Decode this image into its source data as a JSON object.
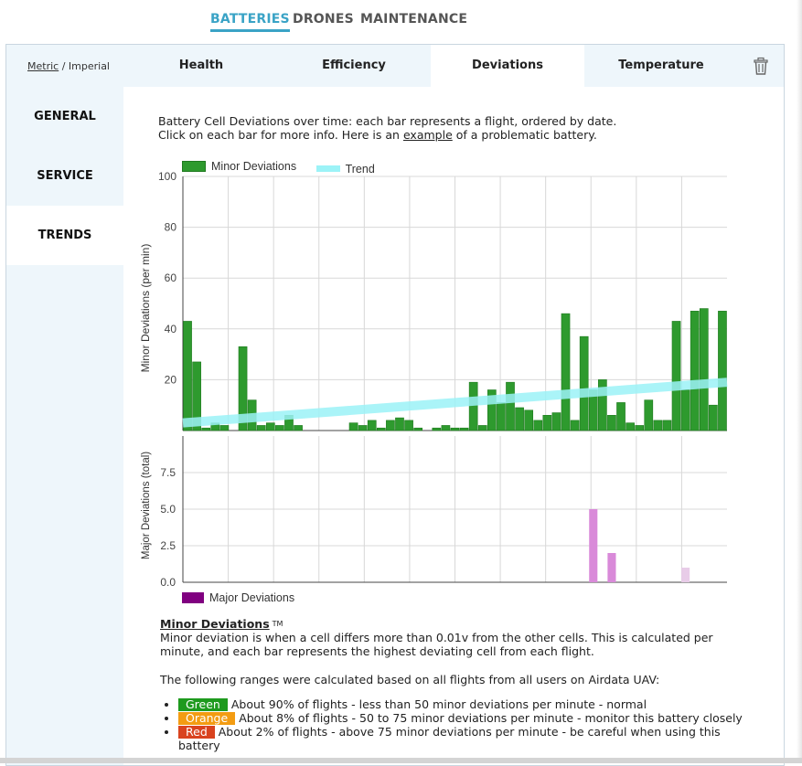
{
  "top_nav": {
    "tabs": [
      "BATTERIES",
      "DRONES",
      "MAINTENANCE"
    ],
    "active": "BATTERIES"
  },
  "units": {
    "metric": "Metric",
    "separator": " / ",
    "imperial": "Imperial"
  },
  "sub_tabs": {
    "labels": [
      "Health",
      "Efficiency",
      "Deviations",
      "Temperature"
    ],
    "active": "Deviations"
  },
  "sidebar": {
    "items": [
      "GENERAL",
      "SERVICE",
      "TRENDS"
    ],
    "active": "TRENDS"
  },
  "intro": {
    "line1": "Battery Cell Deviations over time: each bar represents a flight, ordered by date.",
    "line2_prefix": "Click on each bar for more info. Here is an ",
    "link": "example",
    "line2_suffix": " of a problematic battery."
  },
  "colors": {
    "minor": "#2e9a2e",
    "minor_edge": "#1f7a1f",
    "trend": "#9cf3f7",
    "major": "#d98ad9",
    "major_faded": "#e8cce8",
    "major_legend": "#800080",
    "green": "#1e9a1e",
    "orange": "#f39c12",
    "red": "#d9431f",
    "grid": "#d8d8d8"
  },
  "chart_data": [
    {
      "type": "bar",
      "legend": [
        "Minor Deviations",
        "Trend"
      ],
      "ylabel": "Minor Deviations (per min)",
      "ylim": [
        0,
        100
      ],
      "yticks": [
        20,
        40,
        60,
        80,
        100
      ],
      "series": [
        {
          "name": "Minor Deviations",
          "values": [
            43,
            27,
            1,
            3,
            2,
            0,
            33,
            12,
            2,
            3,
            2,
            6,
            2,
            0,
            0,
            0,
            0,
            0,
            3,
            2,
            4,
            1,
            4,
            5,
            4,
            1,
            0,
            1,
            2,
            1,
            1,
            19,
            2,
            16,
            11,
            19,
            9,
            8,
            4,
            6,
            7,
            46,
            4,
            37,
            16,
            20,
            6,
            11,
            3,
            2,
            12,
            4,
            4,
            43,
            16,
            47,
            48,
            10,
            47
          ]
        },
        {
          "name": "Trend",
          "start": 3,
          "end": 19
        }
      ]
    },
    {
      "type": "bar",
      "legend": [
        "Major Deviations"
      ],
      "ylabel": "Major Deviations (total)",
      "ylim": [
        0,
        10
      ],
      "yticks": [
        "0.0",
        "2.5",
        "5.0",
        "7.5"
      ],
      "series": [
        {
          "name": "Major Deviations",
          "points": [
            {
              "index": 44,
              "value": 5
            },
            {
              "index": 46,
              "value": 2
            },
            {
              "index": 54,
              "value": 1
            }
          ]
        }
      ]
    }
  ],
  "description": {
    "title": "Minor Deviations",
    "tm": "TM",
    "text": "Minor deviation is when a cell differs more than 0.01v from the other cells. This is calculated per minute, and each bar represents the highest deviating cell from each flight.",
    "ranges_intro": "The following ranges were calculated based on all flights from all users on Airdata UAV:",
    "ranges": [
      {
        "label": "Green",
        "text": "About 90% of flights - less than 50 minor deviations per minute - normal"
      },
      {
        "label": "Orange",
        "text": "About 8% of flights - 50 to 75 minor deviations per minute - monitor this battery closely"
      },
      {
        "label": "Red",
        "text": "About 2% of flights - above 75 minor deviations per minute - be careful when using this battery"
      }
    ]
  }
}
